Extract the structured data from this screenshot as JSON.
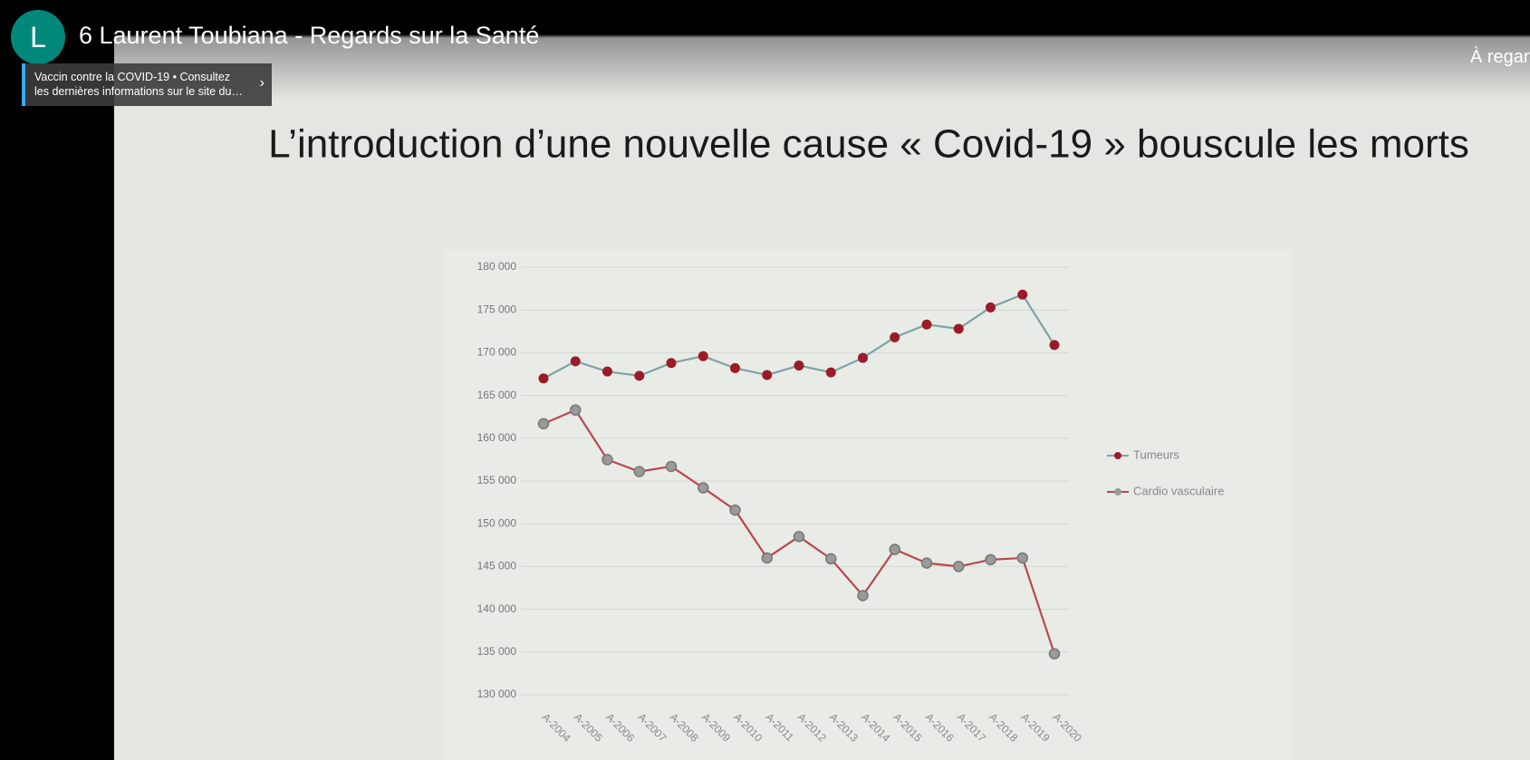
{
  "header": {
    "avatar": "L",
    "video_title": "6 Laurent Toubiana - Regards sur la Santé",
    "notice": "Vaccin contre la COVID-19 • Consultez les dernières informations sur le site du…",
    "watch_later": "À regar"
  },
  "chart_data": {
    "type": "line",
    "title": "L’introduction d’une nouvelle cause « Covid-19 » bouscule les morts",
    "categories": [
      "A-2004",
      "A-2005",
      "A-2006",
      "A-2007",
      "A-2008",
      "A-2009",
      "A-2010",
      "A-2011",
      "A-2012",
      "A-2013",
      "A-2014",
      "A-2015",
      "A-2016",
      "A-2017",
      "A-2018",
      "A-2019",
      "A-2020"
    ],
    "series": [
      {
        "name": "Tumeurs",
        "color": "#7fa3a3",
        "marker_color": "#9b1b2a",
        "values": [
          167000,
          169000,
          167800,
          167300,
          168800,
          169600,
          168200,
          167400,
          168500,
          167700,
          169400,
          171800,
          173300,
          172800,
          175300,
          176800,
          170900
        ]
      },
      {
        "name": "Cardio vasculaire",
        "color": "#b8484e",
        "marker_color": "#9a9a9a",
        "values": [
          161700,
          163300,
          157500,
          156100,
          156700,
          154200,
          151600,
          146000,
          148500,
          145900,
          141600,
          147000,
          145400,
          145000,
          145800,
          146000,
          134800
        ]
      }
    ],
    "ylim": [
      130000,
      180000
    ],
    "yticks": [
      {
        "value": 130000,
        "label": "130 000"
      },
      {
        "value": 135000,
        "label": "135 000"
      },
      {
        "value": 140000,
        "label": "140 000"
      },
      {
        "value": 145000,
        "label": "145 000"
      },
      {
        "value": 150000,
        "label": "150 000"
      },
      {
        "value": 155000,
        "label": "155 000"
      },
      {
        "value": 160000,
        "label": "160 000"
      },
      {
        "value": 165000,
        "label": "165 000"
      },
      {
        "value": 170000,
        "label": "170 000"
      },
      {
        "value": 175000,
        "label": "175 000"
      },
      {
        "value": 180000,
        "label": "180 000"
      }
    ],
    "grid": true
  }
}
